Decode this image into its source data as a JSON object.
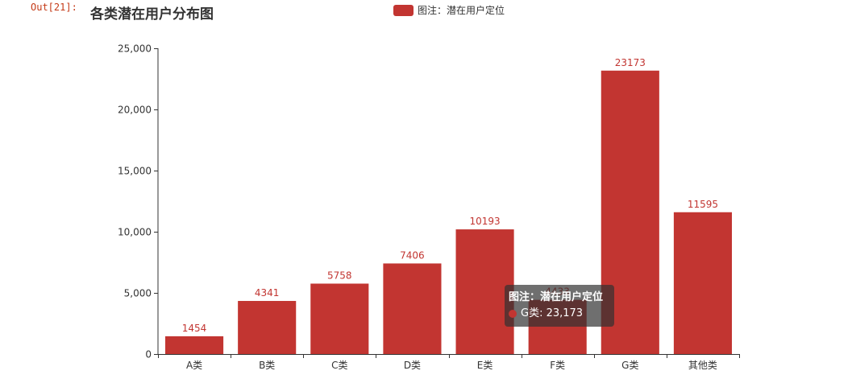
{
  "notebook": {
    "out_prompt": "Out[21]:"
  },
  "chart_data": {
    "type": "bar",
    "title": "各类潜在用户分布图",
    "legend": {
      "label": "图注：潜在用户定位",
      "placement": "top-center"
    },
    "categories": [
      "A类",
      "B类",
      "C类",
      "D类",
      "E类",
      "F类",
      "G类",
      "其他类"
    ],
    "series": [
      {
        "name": "图注：潜在用户定位",
        "values": [
          1454,
          4341,
          5758,
          7406,
          10193,
          4433,
          23173,
          11595
        ],
        "color": "#c23531"
      }
    ],
    "y_ticks": [
      "0",
      "5,000",
      "10,000",
      "15,000",
      "20,000",
      "25,000"
    ],
    "ylim": [
      0,
      25000
    ],
    "grid": false,
    "data_labels": true
  },
  "tooltip": {
    "title": "图注：潜在用户定位",
    "row": "G类: 23,173"
  },
  "colors": {
    "bar": "#c23531",
    "label": "#c23531",
    "axis": "#333333"
  }
}
